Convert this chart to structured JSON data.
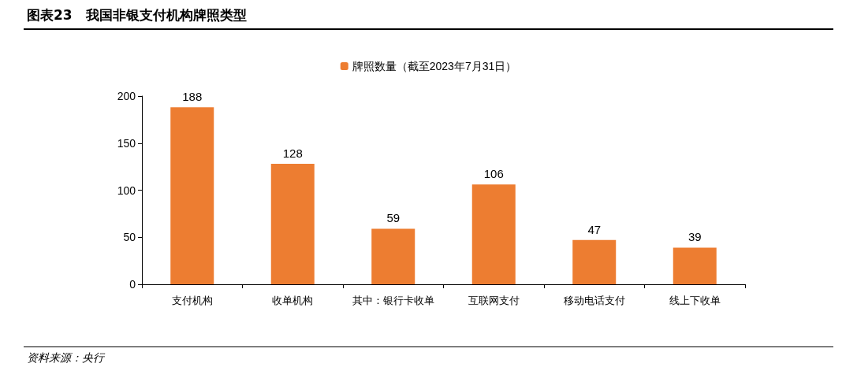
{
  "chart_data": {
    "type": "bar",
    "title": "图表23　我国非银支付机构牌照类型",
    "categories": [
      "支付机构",
      "收单机构",
      "其中：银行卡收单",
      "互联网支付",
      "移动电话支付",
      "线上下收单"
    ],
    "series": [
      {
        "name": "牌照数量（截至2023年7月31日）",
        "color": "#ed7d31",
        "values": [
          188,
          128,
          59,
          106,
          47,
          39
        ]
      }
    ],
    "ylim": [
      0,
      200
    ],
    "yticks": [
      0,
      50,
      100,
      150,
      200
    ],
    "grid": false,
    "legend": "top",
    "data_labels": true,
    "annotations": [
      "资料来源：央行"
    ]
  }
}
